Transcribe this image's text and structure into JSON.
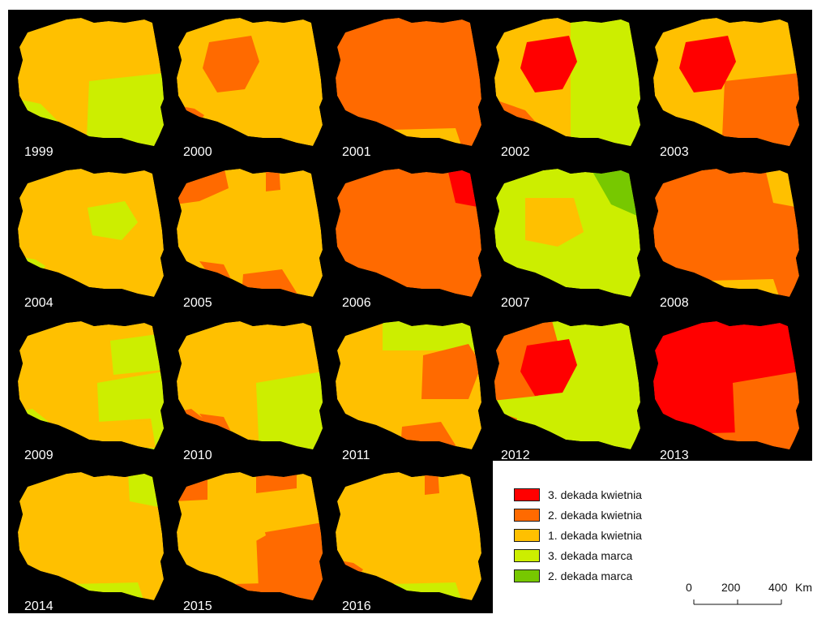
{
  "map": {
    "years": [
      "1999",
      "2000",
      "2001",
      "2002",
      "2003",
      "2004",
      "2005",
      "2006",
      "2007",
      "2008",
      "2009",
      "2010",
      "2011",
      "2012",
      "2013",
      "2014",
      "2015",
      "2016"
    ],
    "categories": [
      {
        "id": "k3",
        "label": "3. dekada kwietnia",
        "color": "#ff0000"
      },
      {
        "id": "k2",
        "label": "2. dekada kwietnia",
        "color": "#ff6a00"
      },
      {
        "id": "k1",
        "label": "1. dekada kwietnia",
        "color": "#ffc000"
      },
      {
        "id": "m3",
        "label": "3. dekada marca",
        "color": "#ccee00"
      },
      {
        "id": "m2",
        "label": "2. dekada marca",
        "color": "#77c800"
      }
    ],
    "background_color": "#000000"
  },
  "scale": {
    "ticks": [
      "0",
      "200",
      "400"
    ],
    "unit": "Km"
  }
}
